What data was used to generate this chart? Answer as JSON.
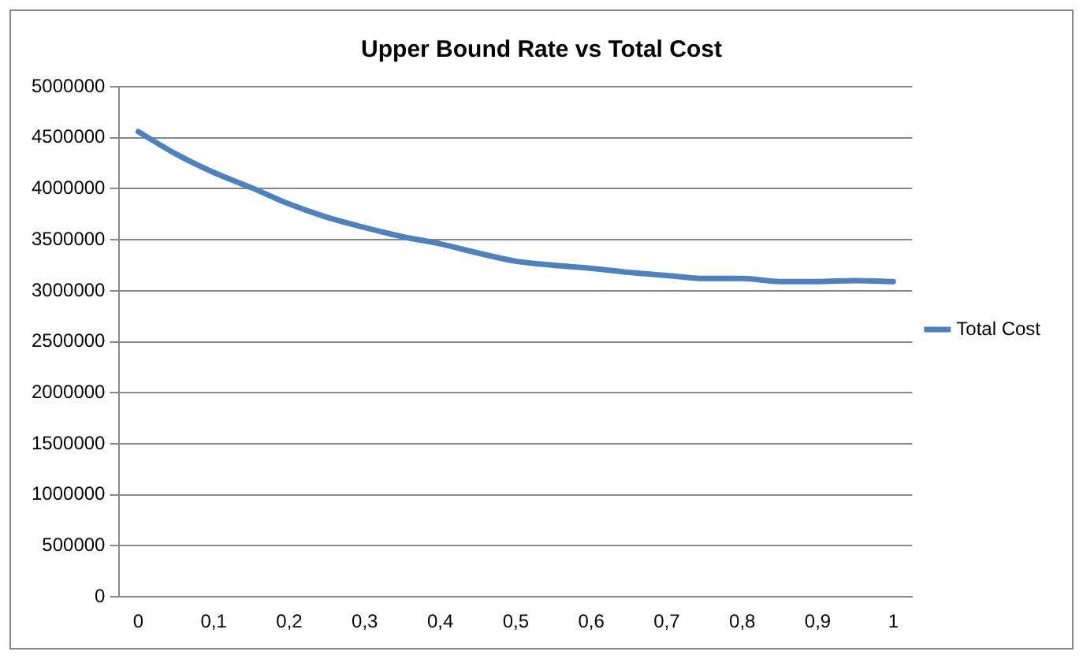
{
  "chart_data": {
    "type": "line",
    "title": "Upper Bound Rate vs Total Cost",
    "categories": [
      "0",
      null,
      "0,1",
      null,
      "0,2",
      null,
      "0,3",
      null,
      "0,4",
      null,
      "0,5",
      null,
      "0,6",
      null,
      "0,7",
      null,
      "0,8",
      null,
      "0,9",
      null,
      "1"
    ],
    "series": [
      {
        "name": "Total Cost",
        "color": "#4f81bd",
        "values": [
          4560000,
          4340000,
          4160000,
          4010000,
          3850000,
          3720000,
          3620000,
          3530000,
          3460000,
          3370000,
          3290000,
          3250000,
          3220000,
          3180000,
          3150000,
          3120000,
          3120000,
          3090000,
          3090000,
          3100000,
          3090000
        ]
      }
    ],
    "ylim": [
      0,
      5000000
    ],
    "yticks": [
      0,
      500000,
      1000000,
      1500000,
      2000000,
      2500000,
      3000000,
      3500000,
      4000000,
      4500000,
      5000000
    ],
    "grid": "y",
    "legend": "right",
    "marker": "none",
    "line_style": "solid"
  }
}
